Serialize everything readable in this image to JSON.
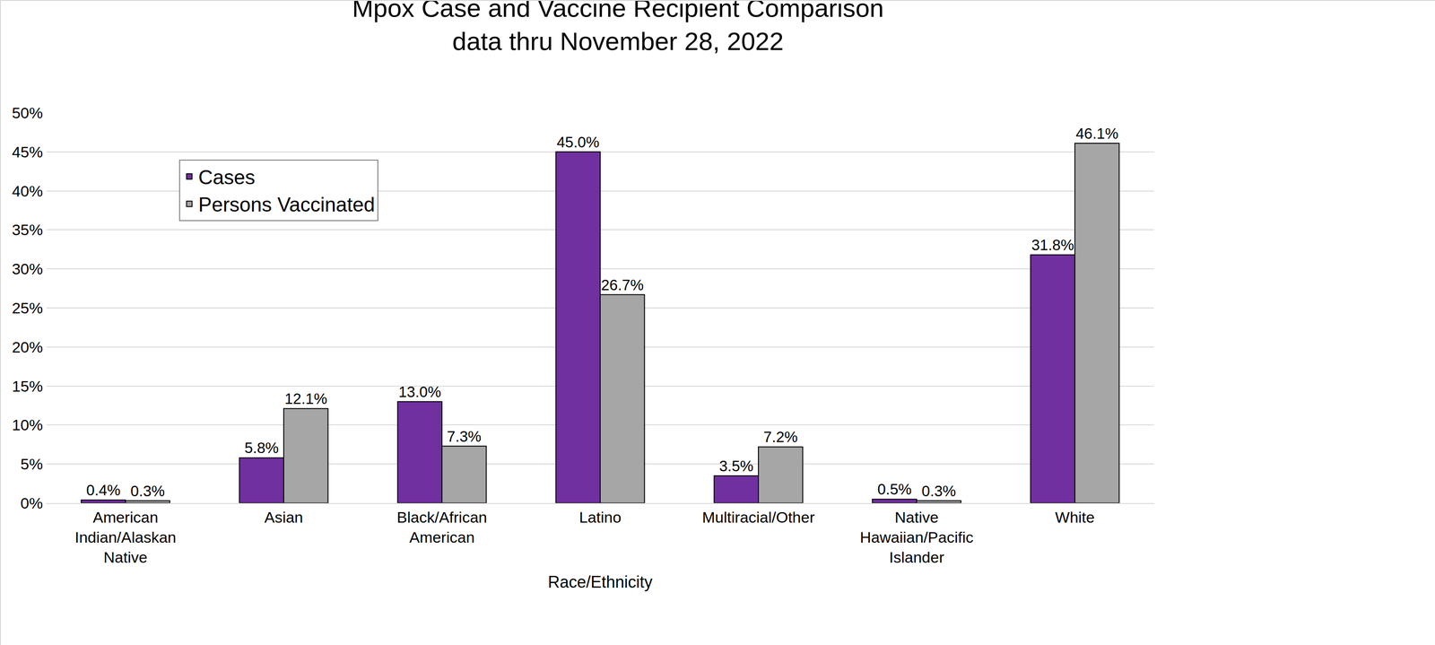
{
  "chart_data": {
    "type": "bar",
    "title": "Mpox Case and Vaccine Recipient Comparison",
    "subtitle": "data thru November 28, 2022",
    "x_label": "Race/Ethnicity",
    "categories": [
      "American Indian/Alaskan Native",
      "Asian",
      "Black/African American",
      "Latino",
      "Multiracial/Other",
      "Native Hawaiian/Pacific Islander",
      "White"
    ],
    "series": [
      {
        "name": "Cases",
        "color": "#7030A0",
        "values": [
          0.4,
          5.8,
          13.0,
          45.0,
          3.5,
          0.5,
          31.8
        ],
        "value_labels": [
          "0.4%",
          "5.8%",
          "13.0%",
          "45.0%",
          "3.5%",
          "0.5%",
          "31.8%"
        ]
      },
      {
        "name": "Persons Vaccinated",
        "color": "#A6A6A6",
        "values": [
          0.3,
          12.1,
          7.3,
          26.7,
          7.2,
          0.3,
          46.1
        ],
        "value_labels": [
          "0.3%",
          "12.1%",
          "7.3%",
          "26.7%",
          "7.2%",
          "0.3%",
          "46.1%"
        ]
      }
    ],
    "ylim": [
      0,
      50
    ],
    "yticks": [
      {
        "value": 0,
        "label": "0%"
      },
      {
        "value": 5,
        "label": "5%"
      },
      {
        "value": 10,
        "label": "10%"
      },
      {
        "value": 15,
        "label": "15%"
      },
      {
        "value": 20,
        "label": "20%"
      },
      {
        "value": 25,
        "label": "25%"
      },
      {
        "value": 30,
        "label": "30%"
      },
      {
        "value": 35,
        "label": "35%"
      },
      {
        "value": 40,
        "label": "40%"
      },
      {
        "value": 45,
        "label": "45%"
      },
      {
        "value": 50,
        "label": "50%"
      }
    ],
    "grid": true,
    "legend": "upper left",
    "data_labels": true
  }
}
